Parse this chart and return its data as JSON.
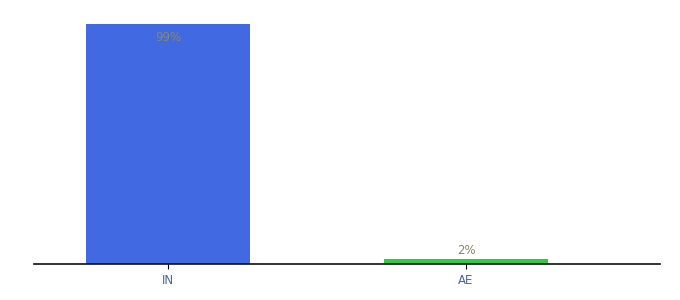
{
  "categories": [
    "IN",
    "AE"
  ],
  "values": [
    99,
    2
  ],
  "bar_colors": [
    "#4169e1",
    "#2ecc40"
  ],
  "bar_labels": [
    "99%",
    "2%"
  ],
  "label_color": "#888866",
  "ylim": [
    0,
    105
  ],
  "background_color": "#ffffff",
  "label_fontsize": 8.5,
  "tick_fontsize": 8.5,
  "tick_color": "#4466aa",
  "bar_width": 0.55,
  "x_positions": [
    1,
    2
  ],
  "xlim": [
    0.55,
    2.65
  ]
}
